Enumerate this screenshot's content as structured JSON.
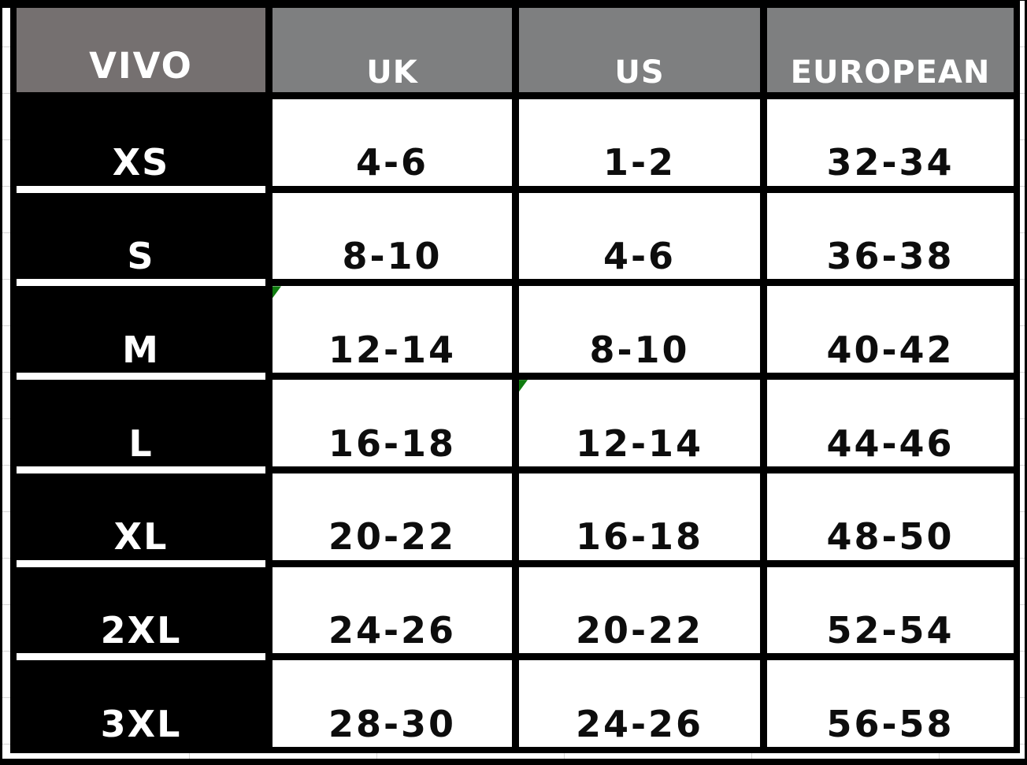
{
  "table": {
    "brand": "VIVO",
    "columns": [
      "UK",
      "US",
      "EUROPEAN"
    ],
    "rows": [
      {
        "size": "XS",
        "uk": "4-6",
        "us": "1-2",
        "european": "32-34"
      },
      {
        "size": "S",
        "uk": "8-10",
        "us": "4-6",
        "european": "36-38"
      },
      {
        "size": "M",
        "uk": "12-14",
        "us": "8-10",
        "european": "40-42"
      },
      {
        "size": "L",
        "uk": "16-18",
        "us": "12-14",
        "european": "44-46"
      },
      {
        "size": "XL",
        "uk": "20-22",
        "us": "16-18",
        "european": "48-50"
      },
      {
        "size": "2XL",
        "uk": "24-26",
        "us": "20-22",
        "european": "52-54"
      },
      {
        "size": "3XL",
        "uk": "28-30",
        "us": "24-26",
        "european": "56-58"
      }
    ],
    "error_flags": [
      {
        "row": "M",
        "column": "UK"
      },
      {
        "row": "L",
        "column": "US"
      }
    ]
  },
  "colors": {
    "brand_header_bg": "#757070",
    "column_header_bg": "#7e7f80",
    "size_column_bg": "#000000",
    "data_cell_bg": "#ffffff",
    "border": "#000000",
    "gridline": "#d6d6d6",
    "flag_green": "#107c10"
  },
  "chart_data": {
    "type": "table",
    "columns": [
      "VIVO",
      "UK",
      "US",
      "EUROPEAN"
    ],
    "rows": [
      [
        "XS",
        "4-6",
        "1-2",
        "32-34"
      ],
      [
        "S",
        "8-10",
        "4-6",
        "36-38"
      ],
      [
        "M",
        "12-14",
        "8-10",
        "40-42"
      ],
      [
        "L",
        "16-18",
        "12-14",
        "44-46"
      ],
      [
        "XL",
        "20-22",
        "16-18",
        "48-50"
      ],
      [
        "2XL",
        "24-26",
        "20-22",
        "52-54"
      ],
      [
        "3XL",
        "28-30",
        "24-26",
        "56-58"
      ]
    ],
    "layout": {
      "header_row": true,
      "header_column": true,
      "grid": true
    }
  }
}
